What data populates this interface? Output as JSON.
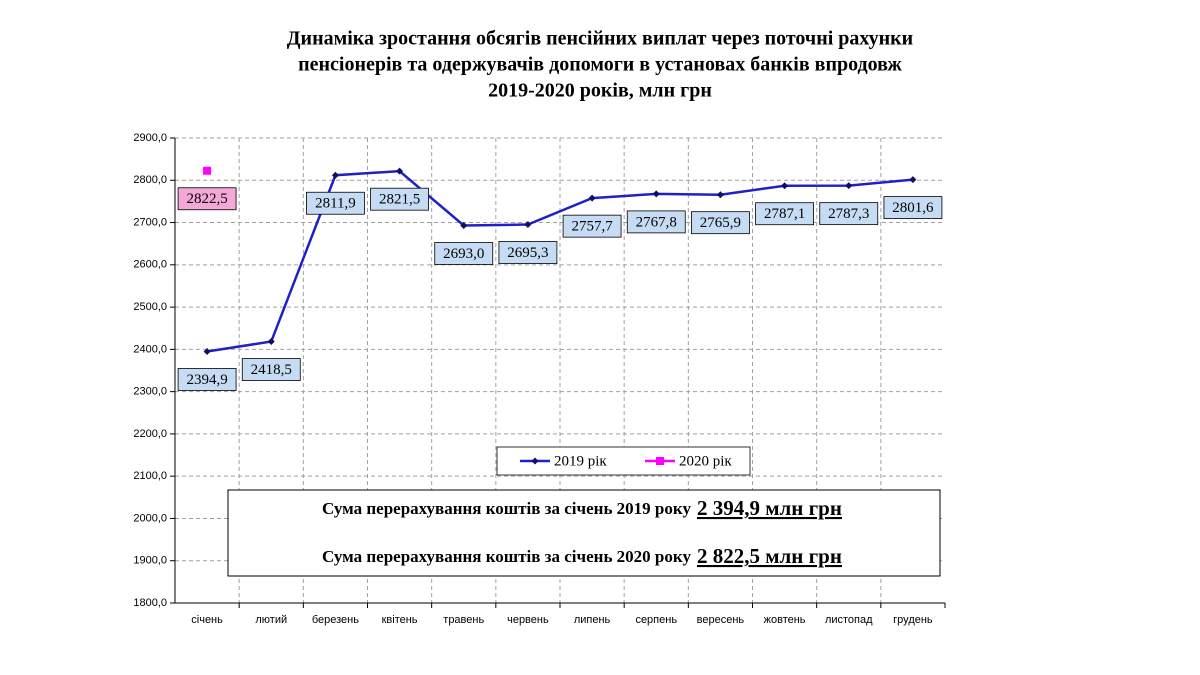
{
  "chart_data": {
    "type": "line",
    "title": [
      "Динаміка зростання обсягів пенсійних виплат через поточні рахунки",
      "пенсіонерів та одержувачів допомоги в установах банків впродовж",
      "2019-2020 років, млн грн"
    ],
    "categories": [
      "січень",
      "лютий",
      "березень",
      "квітень",
      "травень",
      "червень",
      "липень",
      "серпень",
      "вересень",
      "жовтень",
      "листопад",
      "грудень"
    ],
    "series": [
      {
        "name": "2019 рік",
        "color": "#2020c8",
        "marker_color": "#101060",
        "label_fill": "#c6dcf5",
        "values": [
          2394.9,
          2418.5,
          2811.9,
          2821.5,
          2693.0,
          2695.3,
          2757.7,
          2767.8,
          2765.9,
          2787.1,
          2787.3,
          2801.6
        ],
        "value_labels": [
          "2394,9",
          "2418,5",
          "2811,9",
          "2821,5",
          "2693,0",
          "2695,3",
          "2757,7",
          "2767,8",
          "2765,9",
          "2787,1",
          "2787,3",
          "2801,6"
        ]
      },
      {
        "name": "2020 рік",
        "color": "#ff00ff",
        "marker_color": "#ff00ff",
        "label_fill": "#f4a8d8",
        "values": [
          2822.5,
          null,
          null,
          null,
          null,
          null,
          null,
          null,
          null,
          null,
          null,
          null
        ],
        "value_labels": [
          "2822,5",
          null,
          null,
          null,
          null,
          null,
          null,
          null,
          null,
          null,
          null,
          null
        ]
      }
    ],
    "ylim": [
      1800,
      2900
    ],
    "yticks": [
      {
        "value": 1800,
        "label": "1800,0"
      },
      {
        "value": 1900,
        "label": "1900,0"
      },
      {
        "value": 2000,
        "label": "2000,0"
      },
      {
        "value": 2100,
        "label": "2100,0"
      },
      {
        "value": 2200,
        "label": "2200,0"
      },
      {
        "value": 2300,
        "label": "2300,0"
      },
      {
        "value": 2400,
        "label": "2400,0"
      },
      {
        "value": 2500,
        "label": "2500,0"
      },
      {
        "value": 2600,
        "label": "2600,0"
      },
      {
        "value": 2700,
        "label": "2700,0"
      },
      {
        "value": 2800,
        "label": "2800,0"
      },
      {
        "value": 2900,
        "label": "2900,0"
      }
    ],
    "grid": true,
    "annotations": [
      {
        "text": "Сума перерахування коштів за січень 2019 року",
        "highlight": "2 394,9 млн грн"
      },
      {
        "text": "Сума перерахування коштів за січень 2020 року",
        "highlight": "2 822,5 млн грн"
      }
    ]
  }
}
